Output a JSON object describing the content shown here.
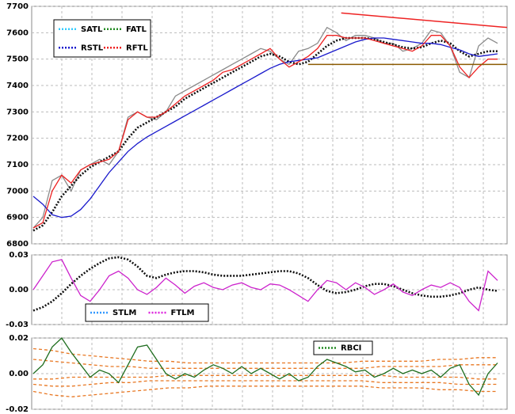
{
  "chart_data": [
    {
      "type": "line",
      "ylim": [
        6800,
        7700
      ],
      "yticks": [
        7700,
        7600,
        7500,
        7400,
        7300,
        7200,
        7100,
        7000,
        6900,
        6800
      ],
      "grid": true,
      "legend": {
        "position": "upper left",
        "entries": [
          {
            "name": "SATL",
            "color": "#33ccff"
          },
          {
            "name": "FATL",
            "color": "#228b22"
          },
          {
            "name": "RSTL",
            "color": "#1a1acc"
          },
          {
            "name": "RFTL",
            "color": "#ee2222"
          }
        ]
      },
      "series": [
        {
          "color": "#8a8a8a",
          "values": [
            6860,
            6900,
            7040,
            7060,
            7000,
            7080,
            7100,
            7120,
            7100,
            7150,
            7280,
            7300,
            7280,
            7270,
            7300,
            7360,
            7380,
            7400,
            7420,
            7440,
            7460,
            7480,
            7500,
            7520,
            7540,
            7530,
            7500,
            7480,
            7530,
            7540,
            7560,
            7620,
            7600,
            7570,
            7590,
            7590,
            7580,
            7560,
            7560,
            7530,
            7540,
            7560,
            7610,
            7600,
            7550,
            7450,
            7430,
            7550,
            7580,
            7560
          ]
        },
        {
          "color": "#111111",
          "style": "dotted",
          "values": [
            6850,
            6870,
            6920,
            6980,
            7020,
            7060,
            7090,
            7110,
            7130,
            7150,
            7200,
            7240,
            7260,
            7280,
            7300,
            7320,
            7350,
            7370,
            7390,
            7410,
            7430,
            7450,
            7470,
            7490,
            7510,
            7520,
            7510,
            7490,
            7480,
            7490,
            7520,
            7550,
            7570,
            7580,
            7580,
            7580,
            7575,
            7565,
            7555,
            7545,
            7540,
            7545,
            7560,
            7570,
            7560,
            7530,
            7510,
            7520,
            7530,
            7530
          ]
        },
        {
          "color": "#1a1acc",
          "values": [
            6980,
            6950,
            6910,
            6900,
            6905,
            6930,
            6970,
            7020,
            7070,
            7110,
            7150,
            7180,
            7205,
            7225,
            7245,
            7265,
            7285,
            7305,
            7325,
            7345,
            7365,
            7385,
            7405,
            7425,
            7445,
            7465,
            7480,
            7490,
            7495,
            7500,
            7505,
            7520,
            7535,
            7550,
            7565,
            7575,
            7580,
            7580,
            7575,
            7570,
            7565,
            7560,
            7560,
            7555,
            7545,
            7535,
            7520,
            7510,
            7515,
            7520
          ]
        },
        {
          "color": "#ee2222",
          "values": [
            6860,
            6880,
            7000,
            7060,
            7030,
            7080,
            7100,
            7110,
            7120,
            7150,
            7270,
            7300,
            7280,
            7280,
            7300,
            7330,
            7360,
            7380,
            7400,
            7420,
            7450,
            7460,
            7480,
            7500,
            7520,
            7540,
            7500,
            7470,
            7490,
            7510,
            7540,
            7590,
            7590,
            7580,
            7580,
            7580,
            7570,
            7560,
            7550,
            7540,
            7530,
            7550,
            7590,
            7590,
            7550,
            7470,
            7430,
            7470,
            7500,
            7500
          ]
        }
      ],
      "lines": [
        {
          "color": "#ee2222",
          "x": [
            32.5,
            50
          ],
          "values": [
            7675,
            7620
          ]
        },
        {
          "color": "#8b5a00",
          "x": [
            29,
            50
          ],
          "values": [
            7480,
            7480
          ]
        }
      ]
    },
    {
      "type": "line",
      "ylim": [
        -0.03,
        0.03
      ],
      "yticks": [
        0.03,
        {
          "value": 0,
          "label": "0.00"
        },
        -0.03
      ],
      "grid": true,
      "legend": {
        "position": "lower left",
        "entries": [
          {
            "name": "STLM",
            "color": "#3399ff"
          },
          {
            "name": "FTLM",
            "color": "#dd22dd"
          }
        ]
      },
      "series": [
        {
          "color": "#111111",
          "style": "dotted",
          "values": [
            -0.018,
            -0.015,
            -0.01,
            -0.003,
            0.005,
            0.012,
            0.018,
            0.023,
            0.027,
            0.028,
            0.026,
            0.02,
            0.012,
            0.01,
            0.013,
            0.015,
            0.016,
            0.016,
            0.015,
            0.013,
            0.012,
            0.012,
            0.012,
            0.013,
            0.014,
            0.015,
            0.016,
            0.016,
            0.014,
            0.01,
            0.004,
            -0.001,
            -0.003,
            -0.002,
            0,
            0.003,
            0.005,
            0.005,
            0.003,
            0,
            -0.003,
            -0.005,
            -0.006,
            -0.006,
            -0.005,
            -0.003,
            0,
            0.002,
            0,
            -0.001
          ]
        },
        {
          "color": "#cc22cc",
          "values": [
            0,
            0.012,
            0.024,
            0.026,
            0.01,
            -0.005,
            -0.01,
            0,
            0.012,
            0.016,
            0.01,
            0,
            -0.004,
            0.002,
            0.01,
            0.004,
            -0.003,
            0.003,
            0.006,
            0.002,
            0,
            0.004,
            0.006,
            0.002,
            0,
            0.005,
            0.004,
            0,
            -0.005,
            -0.01,
            0,
            0.008,
            0.006,
            0,
            0.006,
            0.002,
            -0.004,
            0,
            0.005,
            -0.002,
            -0.005,
            0,
            0.004,
            0.002,
            0.006,
            0.002,
            -0.01,
            -0.018,
            0.016,
            0.008
          ]
        }
      ]
    },
    {
      "type": "line",
      "ylim": [
        -0.02,
        0.02
      ],
      "yticks": [
        0.02,
        {
          "value": 0,
          "label": "0.00"
        },
        -0.02
      ],
      "grid": true,
      "legend": {
        "position": "upper right",
        "entries": [
          {
            "name": "RBCI",
            "color": "#228b22"
          }
        ]
      },
      "series": [
        {
          "color": "#e87722",
          "style": "dashed",
          "values": [
            0.014,
            0.013,
            0.011,
            0.01,
            0.009,
            0.008,
            0.007,
            0.007,
            0.006,
            0.006,
            0.006,
            0.006,
            0.006,
            0.006,
            0.006,
            0.006,
            0.006,
            0.007,
            0.007,
            0.007,
            0.007,
            0.008,
            0.008,
            0.009,
            0.009
          ]
        },
        {
          "color": "#e87722",
          "style": "dashed",
          "values": [
            0.008,
            0.007,
            0.006,
            0.005,
            0.004,
            0.004,
            0.003,
            0.003,
            0.003,
            0.003,
            0.003,
            0.003,
            0.003,
            0.003,
            0.003,
            0.003,
            0.003,
            0.003,
            0.004,
            0.004,
            0.004,
            0.004,
            0.005,
            0.005,
            0.005
          ]
        },
        {
          "color": "#e87722",
          "style": "dashed",
          "values": [
            -0.003,
            -0.003,
            -0.002,
            -0.002,
            -0.002,
            -0.002,
            -0.002,
            -0.001,
            -0.001,
            -0.001,
            -0.001,
            -0.001,
            -0.001,
            -0.001,
            -0.001,
            -0.001,
            -0.001,
            -0.001,
            -0.001,
            -0.002,
            -0.002,
            -0.002,
            -0.002,
            -0.003,
            -0.003
          ]
        },
        {
          "color": "#e87722",
          "style": "dashed",
          "values": [
            -0.006,
            -0.007,
            -0.007,
            -0.006,
            -0.005,
            -0.005,
            -0.004,
            -0.004,
            -0.004,
            -0.004,
            -0.004,
            -0.004,
            -0.004,
            -0.004,
            -0.004,
            -0.004,
            -0.004,
            -0.004,
            -0.005,
            -0.005,
            -0.005,
            -0.005,
            -0.006,
            -0.006,
            -0.006
          ]
        },
        {
          "color": "#e87722",
          "style": "dashed",
          "values": [
            -0.01,
            -0.012,
            -0.013,
            -0.012,
            -0.011,
            -0.01,
            -0.009,
            -0.008,
            -0.008,
            -0.007,
            -0.007,
            -0.007,
            -0.007,
            -0.007,
            -0.007,
            -0.007,
            -0.007,
            -0.007,
            -0.008,
            -0.008,
            -0.008,
            -0.009,
            -0.009,
            -0.01,
            -0.01
          ]
        },
        {
          "color": "#1f6e1f",
          "values": [
            0,
            0.005,
            0.015,
            0.02,
            0.012,
            0.005,
            -0.002,
            0.002,
            0,
            -0.005,
            0.005,
            0.015,
            0.016,
            0.008,
            0,
            -0.003,
            0,
            -0.002,
            0.002,
            0.005,
            0.003,
            0,
            0.004,
            0,
            0.003,
            0,
            -0.003,
            0,
            -0.004,
            -0.002,
            0.004,
            0.008,
            0.006,
            0.004,
            0.001,
            0.002,
            -0.002,
            0,
            0.003,
            0,
            0.002,
            0,
            0.002,
            -0.002,
            0.003,
            0.005,
            -0.006,
            -0.012,
            0,
            0.006
          ]
        }
      ]
    }
  ]
}
